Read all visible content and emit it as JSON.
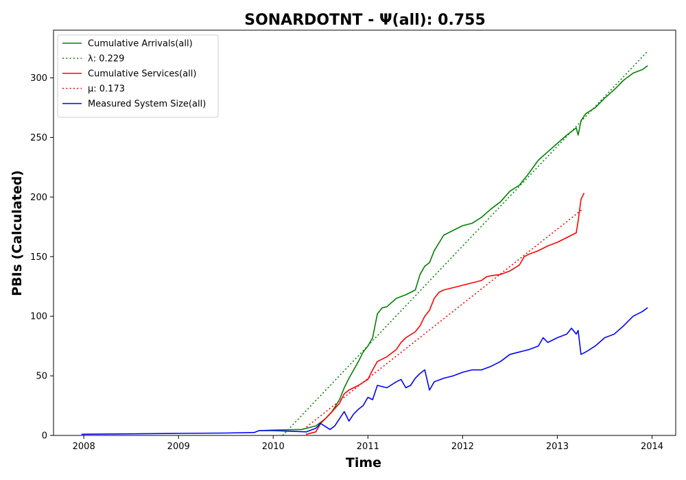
{
  "chart_data": {
    "type": "line",
    "title": "SONARDOTNT -  Ψ(all): 0.755",
    "xlabel": "Time",
    "ylabel": "PBIs (Calculated)",
    "xlim": [
      2007.68,
      2014.25
    ],
    "ylim": [
      0,
      340
    ],
    "x_ticks": [
      2008,
      2009,
      2010,
      2011,
      2012,
      2013,
      2014
    ],
    "x_tick_labels": [
      "2008",
      "2009",
      "2010",
      "2011",
      "2012",
      "2013",
      "2014"
    ],
    "y_ticks": [
      0,
      50,
      100,
      150,
      200,
      250,
      300
    ],
    "y_tick_labels": [
      "0",
      "50",
      "100",
      "150",
      "200",
      "250",
      "300"
    ],
    "grid": false,
    "legend_position": "upper-left",
    "series": [
      {
        "name": "Cumulative Arrivals(all)",
        "legend_label": "Cumulative Arrivals(all)",
        "style": "solid",
        "color": "#008000",
        "x": [
          2009.85,
          2010.0,
          2010.3,
          2010.45,
          2010.55,
          2010.62,
          2010.7,
          2010.75,
          2010.8,
          2010.85,
          2010.9,
          2010.95,
          2011.0,
          2011.05,
          2011.1,
          2011.15,
          2011.2,
          2011.3,
          2011.4,
          2011.5,
          2011.55,
          2011.6,
          2011.65,
          2011.7,
          2011.8,
          2011.9,
          2012.0,
          2012.1,
          2012.2,
          2012.3,
          2012.4,
          2012.5,
          2012.6,
          2012.7,
          2012.8,
          2012.9,
          2013.0,
          2013.1,
          2013.15,
          2013.2,
          2013.22,
          2013.25,
          2013.3,
          2013.4,
          2013.5,
          2013.6,
          2013.7,
          2013.8,
          2013.9,
          2013.95
        ],
        "y": [
          4,
          4.5,
          5,
          8,
          14,
          20,
          30,
          40,
          48,
          55,
          62,
          70,
          75,
          82,
          102,
          107,
          108,
          115,
          118,
          122,
          135,
          142,
          145,
          155,
          168,
          172,
          176,
          178,
          183,
          190,
          196,
          205,
          210,
          220,
          231,
          238,
          245,
          252,
          255,
          258,
          252,
          264,
          270,
          275,
          283,
          290,
          298,
          304,
          307,
          310
        ]
      },
      {
        "name": "λ: 0.229",
        "legend_label": "λ: 0.229",
        "style": "dotted",
        "color": "#008000",
        "x": [
          2010.1,
          2013.95
        ],
        "y": [
          0,
          322
        ]
      },
      {
        "name": "Cumulative Services(all)",
        "legend_label": "Cumulative Services(all)",
        "style": "solid",
        "color": "#ff0000",
        "x": [
          2010.35,
          2010.45,
          2010.5,
          2010.6,
          2010.7,
          2010.75,
          2010.8,
          2010.9,
          2011.0,
          2011.05,
          2011.1,
          2011.2,
          2011.3,
          2011.35,
          2011.4,
          2011.5,
          2011.55,
          2011.6,
          2011.65,
          2011.7,
          2011.75,
          2011.8,
          2011.9,
          2012.0,
          2012.1,
          2012.2,
          2012.25,
          2012.3,
          2012.4,
          2012.5,
          2012.6,
          2012.65,
          2012.7,
          2012.8,
          2012.9,
          2013.0,
          2013.1,
          2013.15,
          2013.2,
          2013.22,
          2013.25,
          2013.28
        ],
        "y": [
          1,
          3,
          10,
          18,
          27,
          35,
          38,
          42,
          47,
          55,
          62,
          66,
          72,
          78,
          82,
          87,
          92,
          100,
          105,
          115,
          120,
          122,
          124,
          126,
          128,
          130,
          133,
          134,
          135,
          138,
          143,
          150,
          152,
          155,
          159,
          162,
          166,
          168,
          170,
          180,
          198,
          203
        ]
      },
      {
        "name": "μ: 0.173",
        "legend_label": "μ: 0.173",
        "style": "dotted",
        "color": "#ff0000",
        "x": [
          2010.35,
          2013.27
        ],
        "y": [
          7,
          190
        ]
      },
      {
        "name": "Measured System Size(all)",
        "legend_label": "Measured System Size(all)",
        "style": "solid",
        "color": "#0000ff",
        "x": [
          2007.98,
          2008.5,
          2009.0,
          2009.5,
          2009.8,
          2009.85,
          2010.0,
          2010.2,
          2010.35,
          2010.45,
          2010.5,
          2010.6,
          2010.65,
          2010.7,
          2010.75,
          2010.8,
          2010.85,
          2010.9,
          2010.95,
          2011.0,
          2011.05,
          2011.1,
          2011.2,
          2011.3,
          2011.35,
          2011.4,
          2011.45,
          2011.5,
          2011.55,
          2011.6,
          2011.65,
          2011.7,
          2011.8,
          2011.9,
          2012.0,
          2012.1,
          2012.2,
          2012.3,
          2012.4,
          2012.5,
          2012.6,
          2012.7,
          2012.8,
          2012.85,
          2012.9,
          2013.0,
          2013.1,
          2013.15,
          2013.2,
          2013.22,
          2013.25,
          2013.3,
          2013.4,
          2013.5,
          2013.6,
          2013.7,
          2013.8,
          2013.9,
          2013.95
        ],
        "y": [
          1,
          1.3,
          1.7,
          2,
          2.5,
          4,
          4,
          3.5,
          3,
          6,
          10,
          5,
          8,
          14,
          20,
          12,
          18,
          22,
          25,
          32,
          30,
          42,
          40,
          45,
          47,
          40,
          42,
          48,
          52,
          55,
          38,
          45,
          48,
          50,
          53,
          55,
          55,
          58,
          62,
          68,
          70,
          72,
          75,
          82,
          78,
          82,
          85,
          90,
          85,
          88,
          68,
          70,
          75,
          82,
          85,
          92,
          100,
          104,
          107
        ]
      }
    ]
  }
}
